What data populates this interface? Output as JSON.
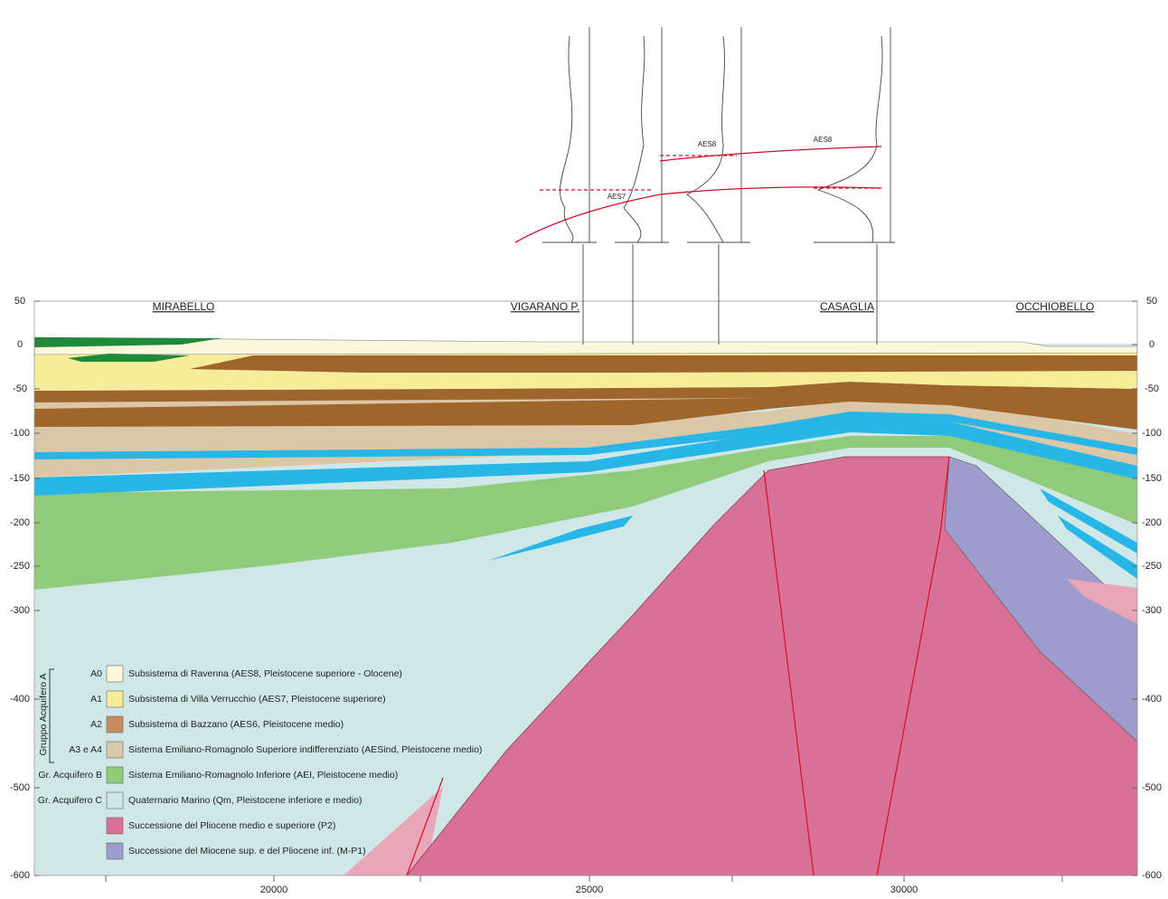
{
  "section": {
    "locations": [
      "MIRABELLO",
      "VIGARANO P.",
      "CASAGLIA",
      "OCCHIOBELLO"
    ],
    "y_axis_ticks": [
      "50",
      "0",
      "-50",
      "-100",
      "-150",
      "-200",
      "-250",
      "-300",
      "-400",
      "-500",
      "-600"
    ],
    "x_axis_ticks": [
      "20000",
      "25000",
      "30000"
    ],
    "log_labels": [
      "AES7",
      "AES8",
      "AES8"
    ]
  },
  "legend": {
    "group_label": "Gruppo Acquifero A",
    "items": [
      {
        "code": "A0",
        "text": "Subsistema di Ravenna (AES8, Pleistocene superiore - Olocene)"
      },
      {
        "code": "A1",
        "text": "Subsistema di Villa Verrucchio (AES7, Pleistocene superiore)"
      },
      {
        "code": "A2",
        "text": "Subsistema di Bazzano (AES6, Pleistocene medio)"
      },
      {
        "code": "A3 e A4",
        "text": "Sistema Emiliano-Romagnolo Superiore indifferenziato (AESind, Pleistocene medio)"
      },
      {
        "code": "Gr. Acquifero B",
        "text": "Sistema Emiliano-Romagnolo Inferiore (AEI, Pleistocene medio)"
      },
      {
        "code": "Gr. Acquifero C",
        "text": "Quaternario Marino (Qm, Pleistocene inferiore e medio)"
      },
      {
        "code": null,
        "text": "Successione del Pliocene medio e superiore (P2)"
      },
      {
        "code": null,
        "text": "Successione del Miocene sup. e del Pliocene inf. (M-P1)"
      }
    ]
  }
}
